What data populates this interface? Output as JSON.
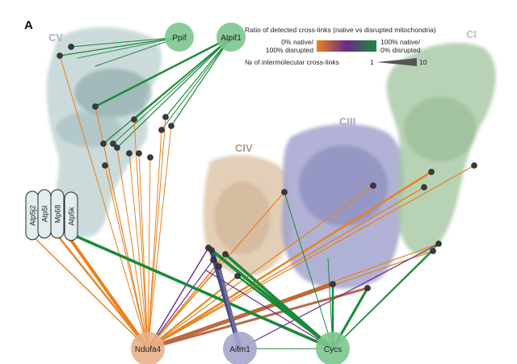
{
  "panel_label": "A",
  "complexes": {
    "cv": "CV",
    "civ": "CIV",
    "ciii": "CIII",
    "ci": "CI"
  },
  "legend": {
    "title": "Ratio of detected cross-links (native vs disrupted mitochondria)",
    "left_label_line1": "0% native/",
    "left_label_line2": "100% disrupted",
    "right_label_line1": "100% native/",
    "right_label_line2": "0% disrupted",
    "count_title": "№ of intermolecular cross-links",
    "count_min": "1",
    "count_max": "10",
    "colors": {
      "native_low": "#e8821e",
      "mid": "#6a2a8a",
      "native_high": "#1a8a3a"
    }
  },
  "proteins": {
    "ppif": "Ppif",
    "atpif1": "Atpif1",
    "ndufa4": "Ndufa4",
    "aifm1": "Aifm1",
    "cycs": "Cycs"
  },
  "subunits": [
    "Atp5j2",
    "Atp5l",
    "Mp68",
    "Atp5k"
  ]
}
